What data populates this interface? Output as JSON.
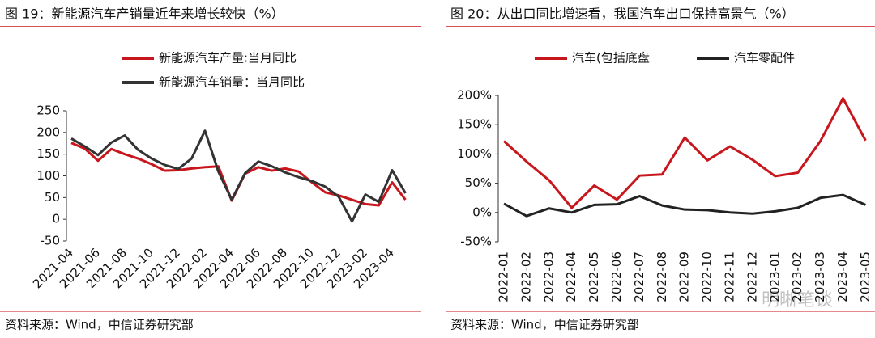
{
  "chart_data": [
    {
      "type": "line",
      "title": "图 19：新能源汽车产销量近年来增长较快（%）",
      "source": "资料来源：Wind，中信证券研究部",
      "categories": [
        "2021-04",
        null,
        "2021-06",
        null,
        "2021-08",
        null,
        "2021-10",
        null,
        "2021-12",
        null,
        "2022-02",
        null,
        "2022-04",
        null,
        "2022-06",
        null,
        "2022-08",
        null,
        "2022-10",
        null,
        "2022-12",
        null,
        "2023-02",
        null,
        "2023-04",
        null
      ],
      "series": [
        {
          "name": "新能源汽车产量:当月同比",
          "color": "#c8161d",
          "values": [
            176,
            163,
            135,
            162,
            150,
            140,
            127,
            112,
            113,
            117,
            120,
            122,
            43,
            105,
            120,
            112,
            117,
            110,
            85,
            62,
            55,
            45,
            35,
            32,
            85,
            45
          ]
        },
        {
          "name": "新能源汽车销量：当月同比",
          "color": "#333333",
          "values": [
            186,
            168,
            148,
            177,
            193,
            160,
            140,
            125,
            116,
            140,
            204,
            110,
            45,
            106,
            133,
            122,
            108,
            97,
            88,
            75,
            52,
            -5,
            57,
            40,
            113,
            60
          ]
        }
      ],
      "ylim": [
        -50,
        250
      ],
      "yticks": [
        -50,
        0,
        50,
        100,
        150,
        200,
        250
      ]
    },
    {
      "type": "line",
      "title": "图 20：从出口同比增速看，我国汽车出口保持高景气（%）",
      "source": "资料来源：Wind，中信证券研究部",
      "watermark": "明晰笔谈",
      "categories": [
        "2022-01",
        "2022-02",
        "2022-03",
        "2022-04",
        "2022-05",
        "2022-06",
        "2022-07",
        "2022-08",
        "2022-09",
        "2022-10",
        "2022-11",
        "2022-12",
        "2023-01",
        "2023-02",
        "2023-03",
        "2023-04",
        "2023-05"
      ],
      "series": [
        {
          "name": "汽车(包括底盘",
          "color": "#c8161d",
          "values": [
            122,
            87,
            55,
            8,
            46,
            22,
            63,
            65,
            128,
            89,
            113,
            90,
            62,
            68,
            122,
            195,
            123
          ]
        },
        {
          "name": "汽车零配件",
          "color": "#222222",
          "values": [
            15,
            -6,
            7,
            0,
            13,
            14,
            28,
            12,
            5,
            4,
            0,
            -2,
            2,
            8,
            25,
            30,
            13
          ]
        }
      ],
      "ylim": [
        -50,
        200
      ],
      "yticks": [
        {
          "value": -50,
          "label": "-50%"
        },
        {
          "value": 0,
          "label": "0%"
        },
        {
          "value": 50,
          "label": "50%"
        },
        {
          "value": 100,
          "label": "100%"
        },
        {
          "value": 150,
          "label": "150%"
        },
        {
          "value": 200,
          "label": "200%"
        }
      ]
    }
  ]
}
